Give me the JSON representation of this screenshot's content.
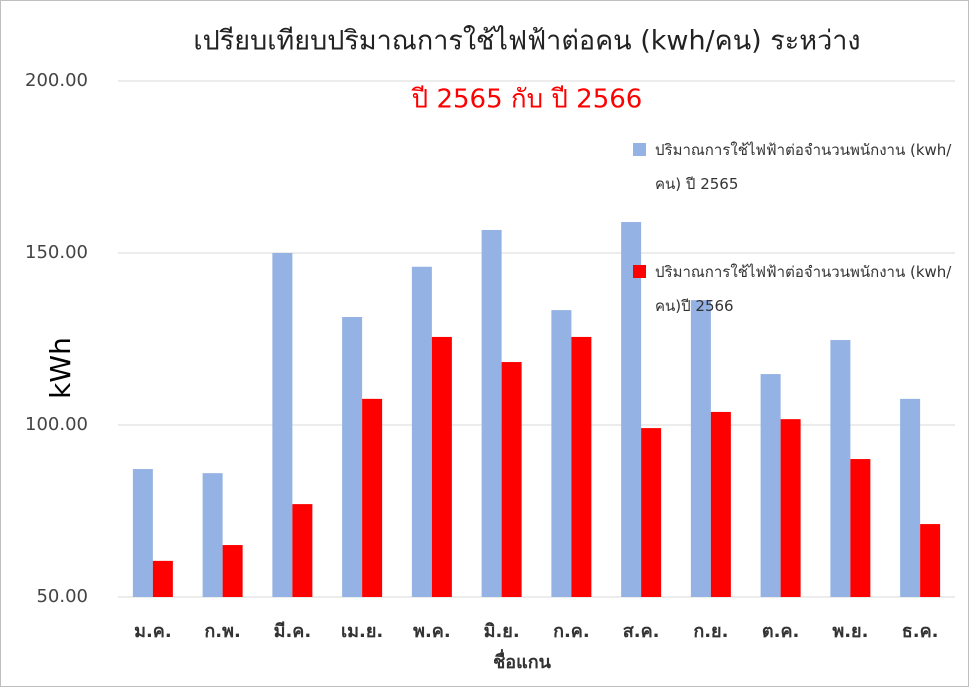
{
  "chart_data": {
    "type": "bar",
    "title": "เปรียบเทียบปริมาณการใช้ไฟฟ้าต่อคน  (kwh/คน)  ระหว่าง",
    "subtitle": "ปี  2565  กับ  ปี  2566",
    "y_label": "kWh",
    "x_label": "ชื่อแกน",
    "categories": [
      "ม.ค.",
      "ก.พ.",
      "มี.ค.",
      "เม.ย.",
      "พ.ค.",
      "มิ.ย.",
      "ก.ค.",
      "ส.ค.",
      "ก.ย.",
      "ต.ค.",
      "พ.ย.",
      "ธ.ค."
    ],
    "series": [
      {
        "name": "ปริมาณการใช้ไฟฟ้าต่อจำนวนพนักงาน (kwh/คน)  ปี  2565",
        "color": "#94b2e4",
        "values": [
          87.2,
          86,
          150,
          131.4,
          146,
          156.7,
          133.4,
          159,
          136.3,
          114.8,
          124.7,
          107.6
        ]
      },
      {
        "name": "ปริมาณการใช้ไฟฟ้าต่อจำนวนพนักงาน (kwh/คน)ปี  2566",
        "color": "#ff0000",
        "values": [
          60.5,
          65.1,
          77,
          107.6,
          125.6,
          118.3,
          125.6,
          99.1,
          103.8,
          101.7,
          90.1,
          71.2
        ]
      }
    ],
    "ylim": [
      50,
      200
    ],
    "yticks": [
      {
        "value": 50,
        "label": "50.00"
      },
      {
        "value": 100,
        "label": "100.00"
      },
      {
        "value": 150,
        "label": "150.00"
      },
      {
        "value": 200,
        "label": "200.00"
      }
    ],
    "grid": true
  }
}
